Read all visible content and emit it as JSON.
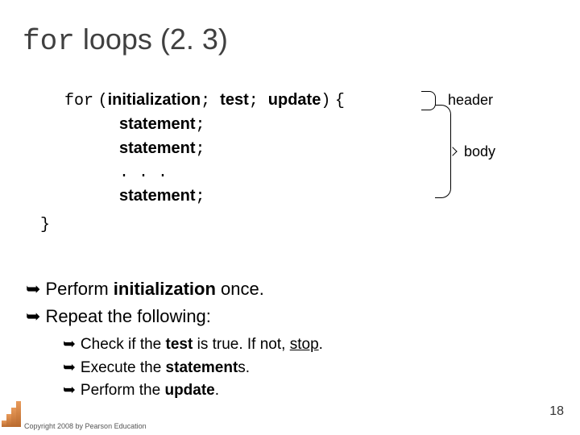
{
  "title": {
    "mono": "for",
    "rest": " loops (2. 3)"
  },
  "code": {
    "kw": "for",
    "open": "(",
    "init": "initialization",
    "sep1": "; ",
    "test": "test",
    "sep2": "; ",
    "update": "update",
    "close": ")",
    "brace": "{",
    "stmt": "statement",
    "semi": ";",
    "dots": ". . .",
    "rbrace": "}"
  },
  "labels": {
    "header": "header",
    "body": "body"
  },
  "bullets": {
    "b1a": "Perform ",
    "b1b": "initialization",
    "b1c": " once.",
    "b2": "Repeat the following:",
    "s1a": "Check if the ",
    "s1b": "test",
    "s1c": " is true.  If not, ",
    "s1stop": "stop",
    "s1d": ".",
    "s2a": "Execute the ",
    "s2b": "statement",
    "s2c": "s.",
    "s3a": "Perform the ",
    "s3b": "update",
    "s3c": "."
  },
  "footer": {
    "copyright": "Copyright 2008 by Pearson Education",
    "page": "18"
  }
}
